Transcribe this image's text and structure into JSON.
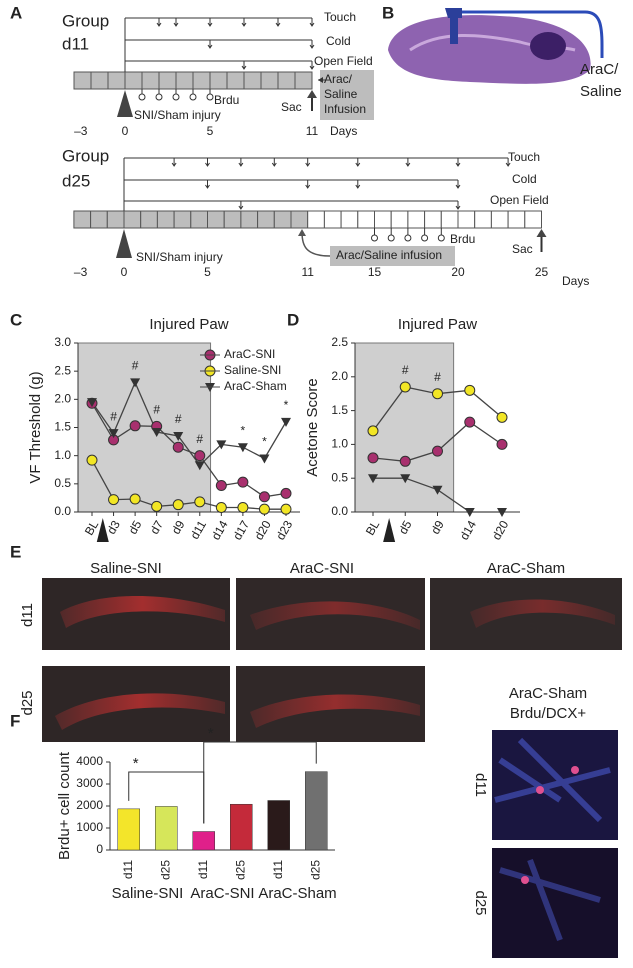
{
  "timeline_d11": {
    "label": "A",
    "group": "Group",
    "name": "d11",
    "touch": "Touch",
    "cold": "Cold",
    "open_field": "Open Field",
    "brdu": "Brdu",
    "infusion": [
      "Arac/",
      "Saline",
      "Infusion"
    ],
    "injury": "SNI/Sham injury",
    "sac": "Sac",
    "days": [
      "–3",
      "0",
      "5",
      "11"
    ],
    "days_label": "Days"
  },
  "timeline_d25": {
    "group": "Group",
    "name": "d25",
    "touch": "Touch",
    "cold": "Cold",
    "open_field": "Open Field",
    "brdu": "Brdu",
    "infusion": "Arac/Saline infusion",
    "injury": "SNI/Sham injury",
    "sac": "Sac",
    "days": [
      "–3",
      "0",
      "5",
      "11",
      "15",
      "20",
      "25"
    ],
    "days_label": "Days"
  },
  "panel_b": {
    "label": "B",
    "text": [
      "AraC/",
      "Saline"
    ]
  },
  "panel_e": {
    "label": "E",
    "columns": [
      "Saline-SNI",
      "AraC-SNI",
      "AraC-Sham"
    ],
    "rows": [
      "d11",
      "d25"
    ],
    "inset_title": [
      "AraC-Sham",
      "Brdu/DCX+"
    ],
    "inset_rows": [
      "d11",
      "d25"
    ]
  },
  "chart_data": [
    {
      "panel": "C",
      "type": "line",
      "title": "Injured Paw",
      "y_label": "VF Threshold (g)",
      "categories": [
        "BL",
        "d3",
        "d5",
        "d7",
        "d9",
        "d11",
        "d14",
        "d17",
        "d20",
        "d23"
      ],
      "series": [
        {
          "name": "AraC-SNI",
          "color": "#a8306e",
          "marker": "circle",
          "values": [
            1.93,
            1.28,
            1.53,
            1.52,
            1.15,
            1.0,
            0.47,
            0.53,
            0.27,
            0.33
          ]
        },
        {
          "name": "Saline-SNI",
          "color": "#f2e625",
          "marker": "circle",
          "values": [
            0.92,
            0.22,
            0.23,
            0.1,
            0.13,
            0.18,
            0.08,
            0.08,
            0.05,
            0.05
          ]
        },
        {
          "name": "AraC-Sham",
          "color": "#333333",
          "marker": "triangle-down",
          "values": [
            1.95,
            1.4,
            2.3,
            1.42,
            1.35,
            0.83,
            1.2,
            1.15,
            0.95,
            1.6
          ]
        }
      ],
      "ylim": [
        0,
        3
      ],
      "yticks": [
        {
          "value": 0,
          "label": "0.0"
        },
        {
          "value": 0.5,
          "label": "0.5"
        },
        {
          "value": 1,
          "label": "1.0"
        },
        {
          "value": 1.5,
          "label": "1.5"
        },
        {
          "value": 2,
          "label": "2.0"
        },
        {
          "value": 2.5,
          "label": "2.5"
        },
        {
          "value": 3,
          "label": "3.0"
        }
      ],
      "legend": "upper right",
      "annotations": [
        {
          "text": "#",
          "at": "d3"
        },
        {
          "text": "#",
          "at": "d5"
        },
        {
          "text": "#",
          "at": "d7"
        },
        {
          "text": "#",
          "at": "d9"
        },
        {
          "text": "#",
          "at": "d11"
        },
        {
          "text": "*",
          "at": "d17"
        },
        {
          "text": "*",
          "at": "d20"
        },
        {
          "text": "*",
          "at": "d23"
        }
      ]
    },
    {
      "panel": "D",
      "type": "line",
      "title": "Injured Paw",
      "y_label": "Acetone Score",
      "categories": [
        "BL",
        "d5",
        "d9",
        "d14",
        "d20"
      ],
      "series": [
        {
          "name": "Saline-SNI",
          "color": "#f2e625",
          "marker": "circle",
          "values": [
            1.2,
            1.85,
            1.75,
            1.8,
            1.4
          ]
        },
        {
          "name": "AraC-SNI",
          "color": "#a8306e",
          "marker": "circle",
          "values": [
            0.8,
            0.75,
            0.9,
            1.33,
            1.0
          ]
        },
        {
          "name": "AraC-Sham",
          "color": "#333333",
          "marker": "triangle-down",
          "values": [
            0.5,
            0.5,
            0.33,
            0,
            0
          ]
        }
      ],
      "ylim": [
        0,
        2.5
      ],
      "yticks": [
        {
          "value": 0,
          "label": "0.0"
        },
        {
          "value": 0.5,
          "label": "0.5"
        },
        {
          "value": 1,
          "label": "1.0"
        },
        {
          "value": 1.5,
          "label": "1.5"
        },
        {
          "value": 2,
          "label": "2.0"
        },
        {
          "value": 2.5,
          "label": "2.5"
        }
      ],
      "annotations": [
        {
          "text": "#",
          "at": "d5"
        },
        {
          "text": "#",
          "at": "d9"
        }
      ]
    },
    {
      "panel": "F",
      "type": "bar",
      "y_label": "Brdu+ cell count",
      "categories": [
        "d11",
        "d25",
        "d11",
        "d25",
        "d11",
        "d25"
      ],
      "values": [
        1870,
        1980,
        840,
        2080,
        2250,
        3560
      ],
      "colors": [
        "#f3e52a",
        "#d6e65a",
        "#e0208a",
        "#c42a3a",
        "#2a1a1a",
        "#707070"
      ],
      "groups": [
        "Saline-SNI",
        "AraC-SNI",
        "AraC-Sham"
      ],
      "ylim": [
        0,
        4000
      ],
      "yticks": [
        0,
        1000,
        2000,
        3000,
        4000
      ],
      "annotations": [
        "*",
        "*"
      ]
    }
  ]
}
